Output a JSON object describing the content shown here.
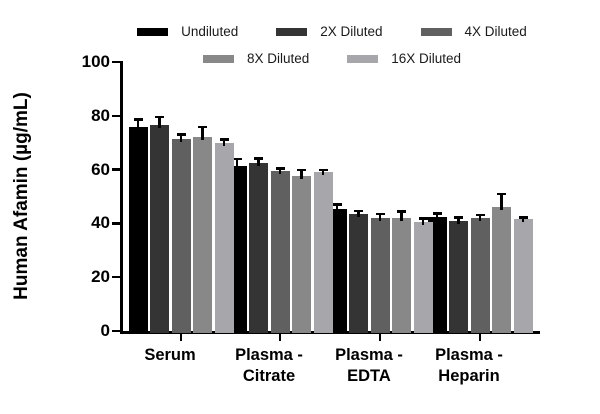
{
  "chart_data": {
    "type": "bar",
    "title": "",
    "ylabel": "Human Afamin (µg/mL)",
    "xlabel": "",
    "ylim": [
      0,
      100
    ],
    "yticks": [
      0,
      20,
      40,
      60,
      80,
      100
    ],
    "grid": false,
    "legend_position": "top",
    "legend_rows": [
      [
        0,
        1,
        2
      ],
      [
        3,
        4
      ]
    ],
    "categories": [
      "Serum",
      "Plasma - Citrate",
      "Plasma - EDTA",
      "Plasma - Heparin"
    ],
    "category_label_lines": [
      [
        "Serum"
      ],
      [
        "Plasma -",
        "Citrate"
      ],
      [
        "Plasma -",
        "EDTA"
      ],
      [
        "Plasma -",
        "Heparin"
      ]
    ],
    "series": [
      {
        "name": "Undiluted",
        "color": "#000000",
        "values": [
          76.0,
          61.5,
          45.5,
          42.5
        ],
        "errors": [
          2.8,
          2.5,
          1.7,
          1.3
        ]
      },
      {
        "name": "2X Diluted",
        "color": "#343434",
        "values": [
          76.5,
          62.5,
          43.5,
          41.0
        ],
        "errors": [
          3.2,
          1.8,
          1.2,
          1.2
        ]
      },
      {
        "name": "4X Diluted",
        "color": "#606060",
        "values": [
          71.5,
          59.5,
          42.0,
          42.0
        ],
        "errors": [
          1.7,
          1.0,
          1.5,
          1.2
        ]
      },
      {
        "name": "8X Diluted",
        "color": "#888888",
        "values": [
          72.0,
          57.5,
          42.0,
          46.0
        ],
        "errors": [
          4.0,
          2.5,
          2.5,
          5.0
        ]
      },
      {
        "name": "16X Diluted",
        "color": "#a7a7ab",
        "values": [
          70.0,
          59.0,
          40.5,
          41.5
        ],
        "errors": [
          1.2,
          1.0,
          1.5,
          0.8
        ]
      }
    ],
    "error_bar_color": "#000000",
    "axis_color": "#000000"
  }
}
